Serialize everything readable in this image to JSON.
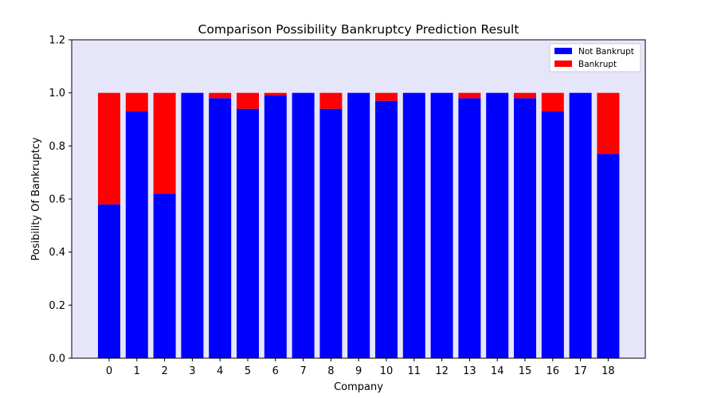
{
  "chart_data": {
    "type": "bar",
    "stacked": true,
    "title": "Comparison Possibility Bankruptcy Prediction Result",
    "xlabel": "Company",
    "ylabel": "Posibility Of Bankruptcy",
    "categories": [
      "0",
      "1",
      "2",
      "3",
      "4",
      "5",
      "6",
      "7",
      "8",
      "9",
      "10",
      "11",
      "12",
      "13",
      "14",
      "15",
      "16",
      "17",
      "18"
    ],
    "series": [
      {
        "name": "Not Bankrupt",
        "color": "#0000ff",
        "values": [
          0.58,
          0.93,
          0.62,
          1.0,
          0.98,
          0.94,
          0.99,
          1.0,
          0.94,
          1.0,
          0.97,
          1.0,
          1.0,
          0.98,
          1.0,
          0.98,
          0.93,
          1.0,
          0.77
        ]
      },
      {
        "name": "Bankrupt",
        "color": "#ff0000",
        "values": [
          0.42,
          0.07,
          0.38,
          0.0,
          0.02,
          0.06,
          0.01,
          0.0,
          0.06,
          0.0,
          0.03,
          0.0,
          0.0,
          0.02,
          0.0,
          0.02,
          0.07,
          0.0,
          0.23
        ]
      }
    ],
    "ylim": [
      0,
      1.2
    ],
    "yticks": [
      "0.0",
      "0.2",
      "0.4",
      "0.6",
      "0.8",
      "1.0",
      "1.2"
    ],
    "background_color": "#e6e6fa",
    "grid": false,
    "legend_position": "top-right"
  }
}
